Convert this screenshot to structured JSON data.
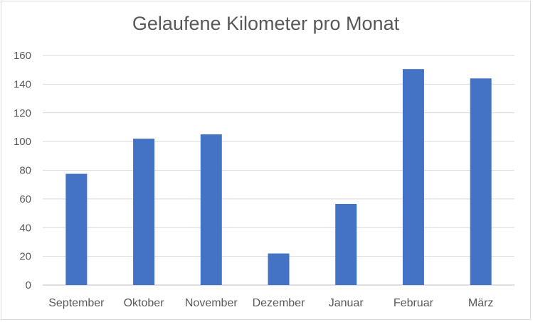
{
  "chart_data": {
    "type": "bar",
    "title": "Gelaufene Kilometer pro Monat",
    "categories": [
      "September",
      "Oktober",
      "November",
      "Dezember",
      "Januar",
      "Februar",
      "März"
    ],
    "values": [
      77.5,
      102,
      105,
      22,
      56.5,
      150.5,
      144
    ],
    "ylim": [
      0,
      160
    ],
    "yticks": [
      0,
      20,
      40,
      60,
      80,
      100,
      120,
      140,
      160
    ],
    "grid": true,
    "bar_color": "#4472c4",
    "legend": "none"
  }
}
